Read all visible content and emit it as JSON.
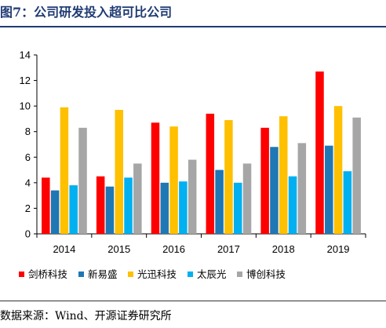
{
  "header": {
    "title": "图7：公司研发投入超可比公司"
  },
  "footer": {
    "source": "数据来源：Wind、开源证券研究所"
  },
  "colors": {
    "rule": "#1f3b73",
    "series": [
      "#ff0000",
      "#1f77b4",
      "#ffc000",
      "#00b0f0",
      "#a6a6a6"
    ]
  },
  "chart_data": {
    "type": "bar",
    "categories": [
      "2014",
      "2015",
      "2016",
      "2017",
      "2018",
      "2019"
    ],
    "ylim": [
      0,
      14
    ],
    "yticks": [
      0,
      2,
      4,
      6,
      8,
      10,
      12,
      14
    ],
    "grid": false,
    "legend_position": "bottom",
    "series": [
      {
        "name": "剑桥科技",
        "values": [
          4.4,
          4.5,
          8.7,
          9.4,
          8.3,
          12.7
        ]
      },
      {
        "name": "新易盛",
        "values": [
          3.4,
          3.7,
          4.0,
          5.0,
          6.8,
          6.9
        ]
      },
      {
        "name": "光迅科技",
        "values": [
          9.9,
          9.7,
          8.4,
          8.9,
          9.2,
          10.0
        ]
      },
      {
        "name": "太辰光",
        "values": [
          3.8,
          4.4,
          4.1,
          4.0,
          4.5,
          4.9
        ]
      },
      {
        "name": "博创科技",
        "values": [
          8.3,
          5.5,
          5.8,
          5.5,
          7.1,
          9.1
        ]
      }
    ]
  }
}
